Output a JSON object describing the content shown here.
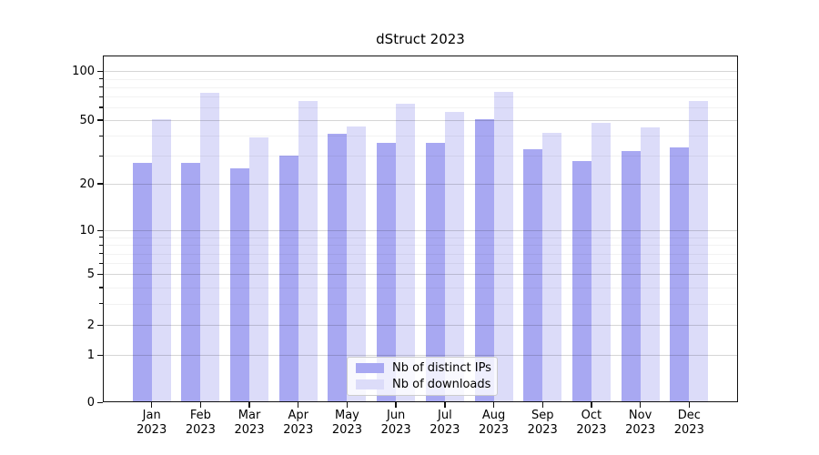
{
  "chart_data": {
    "type": "bar",
    "title": "dStruct 2023",
    "categories": [
      "Jan",
      "Feb",
      "Mar",
      "Apr",
      "May",
      "Jun",
      "Jul",
      "Aug",
      "Sep",
      "Oct",
      "Nov",
      "Dec"
    ],
    "category_year": "2023",
    "series": [
      {
        "name": "Nb of distinct IPs",
        "color": "#a8a8f2",
        "values": [
          27,
          27,
          25,
          30,
          41,
          36,
          36,
          51,
          33,
          28,
          32,
          34
        ]
      },
      {
        "name": "Nb of downloads",
        "color": "#dcdcf9",
        "values": [
          51,
          74,
          39,
          66,
          46,
          63,
          56,
          75,
          42,
          48,
          45,
          66
        ]
      }
    ],
    "xlabel": "",
    "ylabel": "",
    "yscale": "symlog-like (log10(v+0.9))",
    "y_major_ticks": [
      0,
      1,
      2,
      5,
      10,
      20,
      50,
      100
    ],
    "y_minor_ticks": [
      3,
      4,
      6,
      7,
      8,
      9,
      30,
      40,
      60,
      70,
      80,
      90
    ],
    "ylim": [
      0,
      125
    ],
    "grid": true,
    "legend_position": "lower center"
  },
  "colors": {
    "background": "#ffffff",
    "grid_major": "#cfcfcf",
    "grid_minor": "#efefef",
    "spine": "#111111",
    "text": "#000000",
    "legend_border": "#cccccc"
  }
}
